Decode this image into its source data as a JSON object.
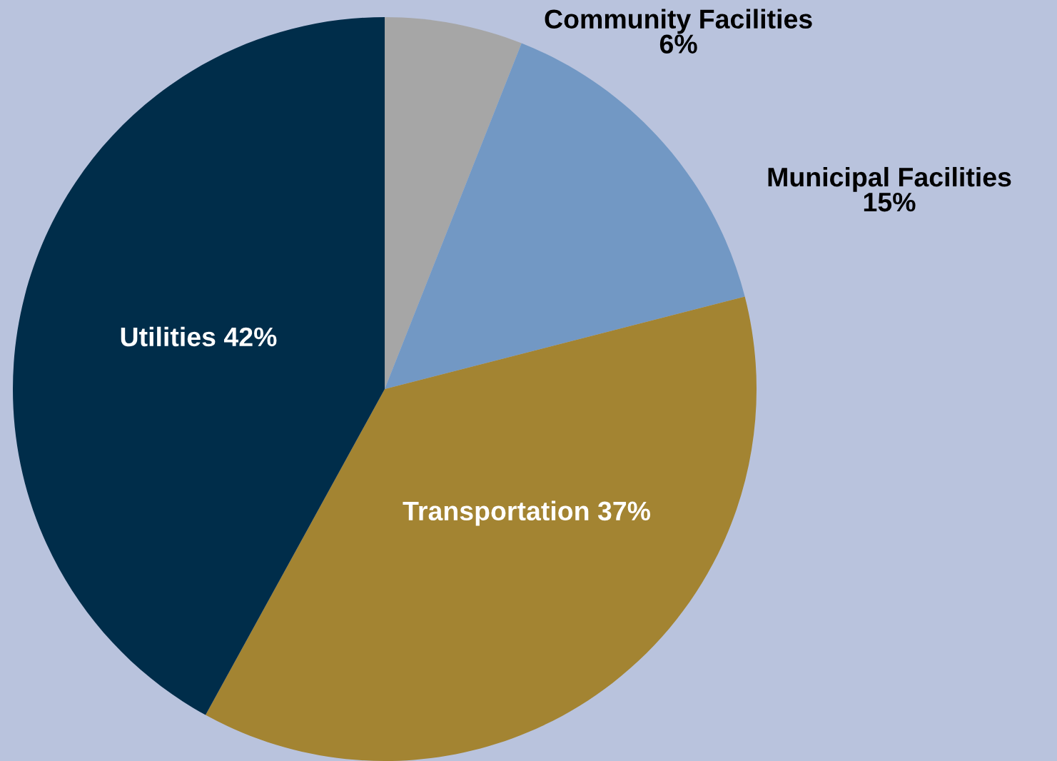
{
  "chart_data": {
    "type": "pie",
    "categories": [
      "Community Facilities",
      "Municipal Facilities",
      "Transportation",
      "Utilities"
    ],
    "values": [
      6,
      15,
      37,
      42
    ],
    "value_labels": [
      "6%",
      "15%",
      "37%",
      "42%"
    ],
    "colors": [
      "#a6a6a6",
      "#7298c4",
      "#a38432",
      "#002d4a"
    ],
    "legend": false
  }
}
